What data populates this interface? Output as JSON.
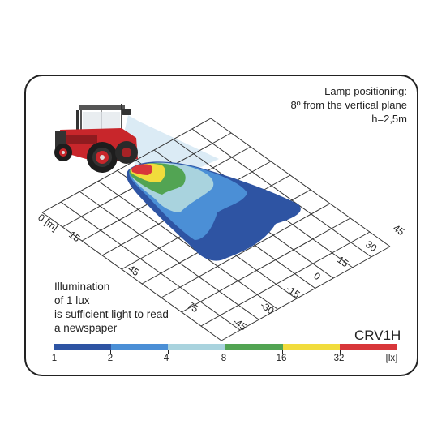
{
  "lamp_note": {
    "line1": "Lamp positioning:",
    "line2": "8º from the vertical plane",
    "line3": "h=2,5m"
  },
  "illumination_note": {
    "line1": "Illumination",
    "line2": "of 1 lux",
    "line3": "is sufficient light to read",
    "line4": "a newspaper"
  },
  "model": "CRV1H",
  "distance_axis": {
    "unit_label": "0 [m]",
    "labels": [
      "15",
      "45",
      "75"
    ]
  },
  "lateral_axis": {
    "labels": [
      "45",
      "30",
      "15",
      "0",
      "-15",
      "-30",
      "-45"
    ]
  },
  "scale": {
    "labels": [
      "1",
      "2",
      "4",
      "8",
      "16",
      "32",
      "[lx]"
    ],
    "colors": [
      "#2e54a3",
      "#4b8fd6",
      "#a9d3de",
      "#52a453",
      "#f1dc3c",
      "#d8363a"
    ]
  }
}
